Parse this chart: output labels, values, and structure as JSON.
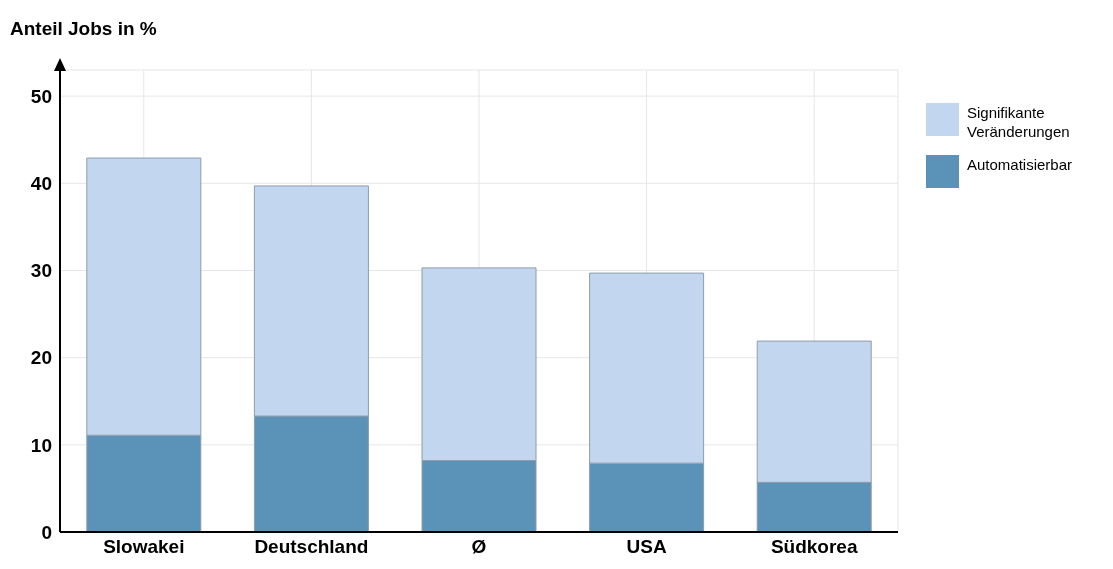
{
  "chart_data": {
    "type": "bar",
    "ylabel": "Anteil Jobs in %",
    "categories": [
      "Slowakei",
      "Deutschland",
      "Ø",
      "USA",
      "Südkorea"
    ],
    "stacked": true,
    "series": [
      {
        "name": "Automatisierbar",
        "color": "#5b93b8",
        "values": [
          11.1,
          13.3,
          8.2,
          7.9,
          5.7
        ]
      },
      {
        "name": "Signifikante Veränderungen",
        "color": "#c2d6f0",
        "values": [
          31.8,
          26.4,
          22.1,
          21.8,
          16.2
        ]
      }
    ],
    "ylim": [
      0,
      53
    ],
    "yticks": [
      0,
      10,
      20,
      30,
      40,
      50
    ],
    "grid": true,
    "legend": "top right"
  }
}
